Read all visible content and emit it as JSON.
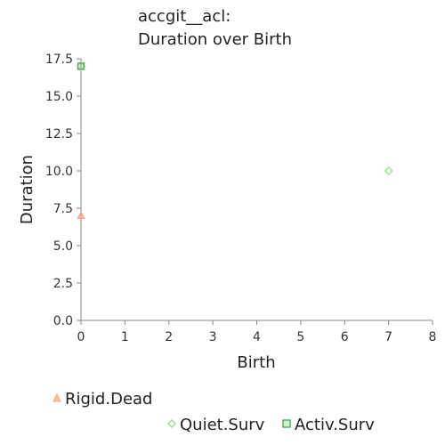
{
  "chart_data": {
    "type": "scatter",
    "title_lines": [
      "accgit__acl:",
      "Duration over Birth"
    ],
    "xlabel": "Birth",
    "ylabel": "Duration",
    "xlim": [
      0,
      8
    ],
    "ylim": [
      0,
      17.5
    ],
    "x_ticks": [
      0,
      1,
      2,
      3,
      4,
      5,
      6,
      7,
      8
    ],
    "y_ticks": [
      0.0,
      2.5,
      5.0,
      7.5,
      10.0,
      12.5,
      15.0,
      17.5
    ],
    "x_tick_labels": [
      "0",
      "1",
      "2",
      "3",
      "4",
      "5",
      "6",
      "7",
      "8"
    ],
    "y_tick_labels": [
      "0.0",
      "2.5",
      "5.0",
      "7.5",
      "10.0",
      "12.5",
      "15.0",
      "17.5"
    ],
    "grid": false,
    "legend_position": "bottom",
    "series": [
      {
        "name": "Rigid.Dead",
        "marker": "triangle",
        "color": "#f4a582",
        "points": [
          {
            "x": 0,
            "y": 7
          }
        ]
      },
      {
        "name": "Quiet.Surv",
        "marker": "diamond",
        "color": "#a6dba0",
        "points": [
          {
            "x": 7,
            "y": 10
          },
          {
            "x": 0,
            "y": 17
          }
        ]
      },
      {
        "name": "Activ.Surv",
        "marker": "square",
        "color": "#5aae61",
        "points": [
          {
            "x": 0,
            "y": 17
          }
        ]
      }
    ]
  }
}
